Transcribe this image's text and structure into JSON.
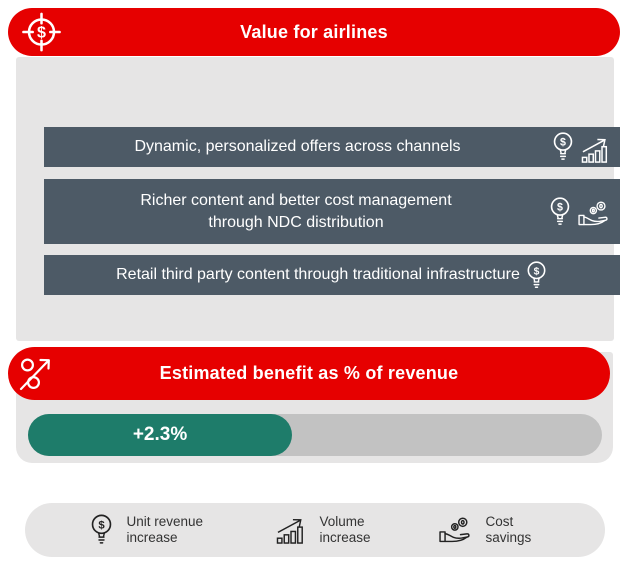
{
  "header": {
    "title": "Value for airlines",
    "icon": "target-dollar-icon"
  },
  "value_rows": [
    {
      "text": "Dynamic, personalized offers across channels",
      "benefit_icons": [
        "unit-revenue-increase",
        "volume-increase"
      ]
    },
    {
      "text": "Richer content and better cost management through NDC distribution",
      "benefit_icons": [
        "unit-revenue-increase",
        "cost-savings"
      ]
    },
    {
      "text": "Retail third party content through traditional infrastructure",
      "benefit_icons": [
        "unit-revenue-increase"
      ]
    }
  ],
  "benefit_section": {
    "title": "Estimated benefit as % of revenue",
    "icon": "percent-growth-icon",
    "value_label": "+2.3%",
    "value_percent": 2.3,
    "fill_ratio": 0.46
  },
  "legend": {
    "items": [
      {
        "icon": "unit-revenue-increase-icon",
        "label": "Unit revenue increase"
      },
      {
        "icon": "volume-increase-icon",
        "label": "Volume increase"
      },
      {
        "icon": "cost-savings-icon",
        "label": "Cost savings"
      }
    ]
  },
  "colors": {
    "red": "#e60000",
    "slate": "#4d5a66",
    "panel_gray": "#e6e5e5",
    "track_gray": "#c2c2c2",
    "teal": "#1e7c6a"
  },
  "chart_data": {
    "type": "bar",
    "title": "Estimated benefit as % of revenue",
    "categories": [
      "Estimated benefit"
    ],
    "values": [
      2.3
    ],
    "unit": "%",
    "value_labels": [
      "+2.3%"
    ],
    "xlim": [
      0,
      5
    ]
  }
}
